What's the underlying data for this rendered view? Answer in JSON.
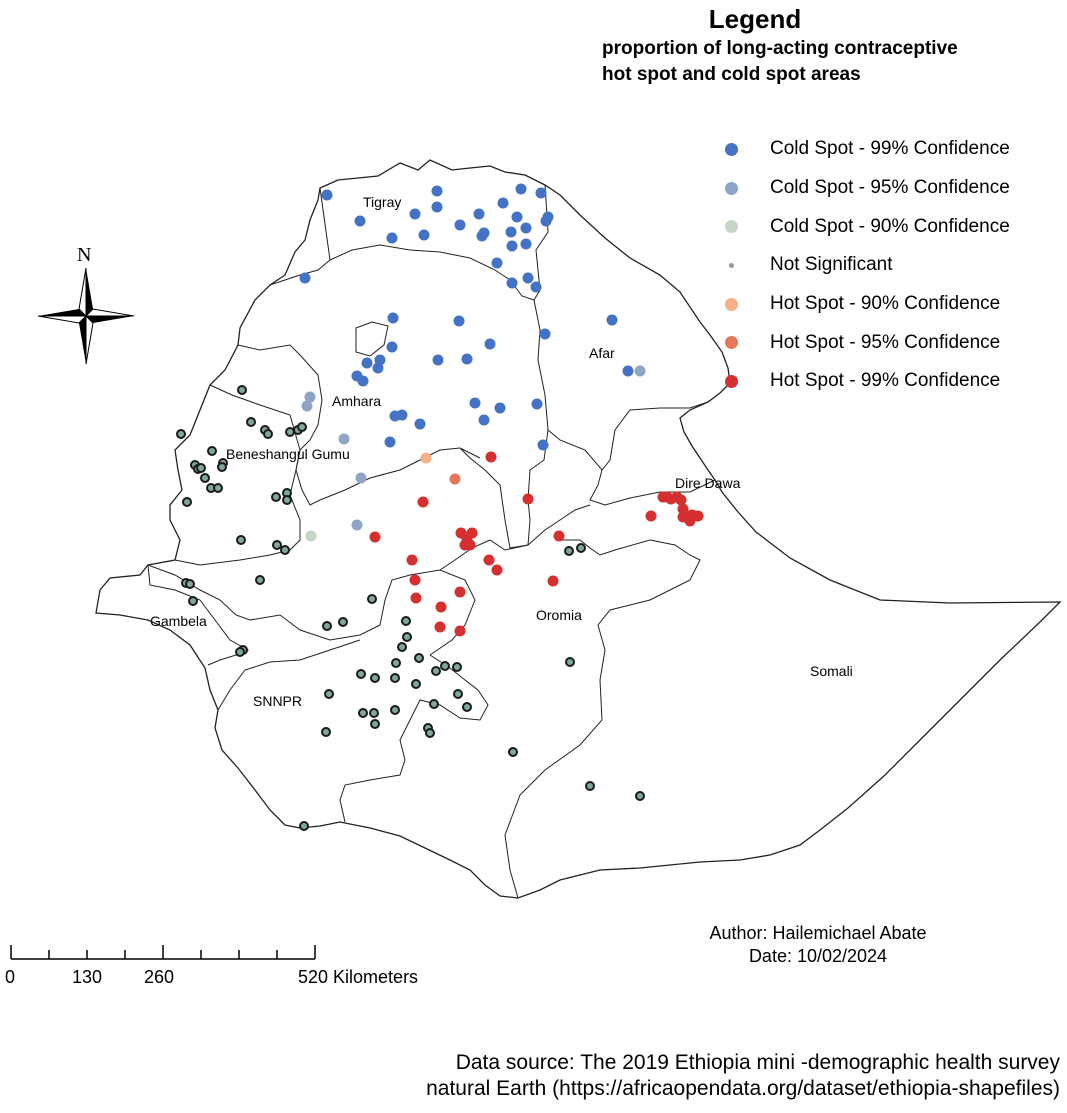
{
  "legend": {
    "title": "Legend",
    "subtitle_line1": "proportion of long-acting contraceptive",
    "subtitle_line2": "hot spot and cold spot areas",
    "items": [
      {
        "label": "Cold Spot - 99% Confidence",
        "color": "#4472c4",
        "size": "large"
      },
      {
        "label": "Cold Spot - 95% Confidence",
        "color": "#8ea5c8",
        "size": "large"
      },
      {
        "label": "Cold Spot - 90% Confidence",
        "color": "#c5d6c6",
        "size": "large"
      },
      {
        "label": "Not Significant",
        "color": "#999999",
        "size": "small"
      },
      {
        "label": "Hot Spot - 90% Confidence",
        "color": "#f4b183",
        "size": "large"
      },
      {
        "label": "Hot Spot - 95% Confidence",
        "color": "#e8775a",
        "size": "large"
      },
      {
        "label": "Hot Spot - 99% Confidence",
        "color": "#d62f2f",
        "size": "large"
      }
    ]
  },
  "not_significant_marker": {
    "fill": "#7fa89a",
    "stroke": "#1a1a1a"
  },
  "regions": {
    "tigray": "Tigray",
    "afar": "Afar",
    "amhara": "Amhara",
    "beneshangul": "Beneshangul Gumu",
    "dire_dawa": "Dire Dawa",
    "gambela": "Gambela",
    "oromia": "Oromia",
    "snnpr": "SNNPR",
    "somali": "Somali"
  },
  "north_arrow": {
    "label": "N"
  },
  "scale_bar": {
    "ticks": [
      "0",
      "130",
      "260",
      "520 Kilometers"
    ]
  },
  "author": {
    "line1": "Author: Hailemichael Abate",
    "line2": "Date: 10/02/2024"
  },
  "sources": {
    "line1": "Data source: The 2019 Ethiopia mini -demographic health survey",
    "line2": "natural Earth (https://africaopendata.org/dataset/ethiopia-shapefiles)"
  }
}
